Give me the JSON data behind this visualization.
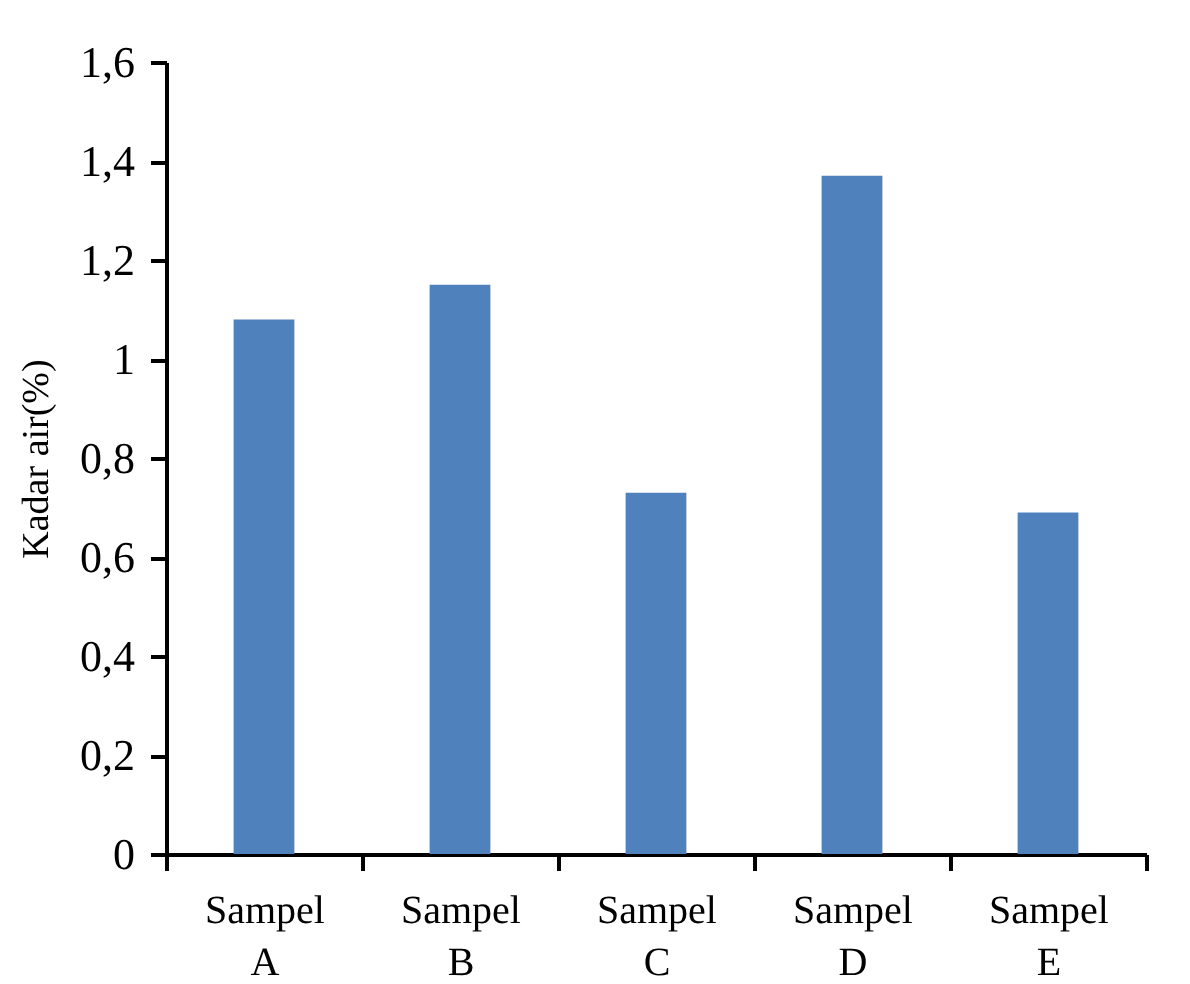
{
  "chart_data": {
    "type": "bar",
    "ylabel": "Kadar air(%)",
    "categories": [
      "Sampel A",
      "Sampel B",
      "Sampel C",
      "Sampel D",
      "Sampel E"
    ],
    "values": [
      1.08,
      1.15,
      0.73,
      1.37,
      0.69
    ],
    "color": "#4f81bd",
    "ylim": [
      0,
      1.6
    ],
    "yticks": [
      {
        "value": 0,
        "label": "0"
      },
      {
        "value": 0.2,
        "label": "0,2"
      },
      {
        "value": 0.4,
        "label": "0,4"
      },
      {
        "value": 0.6,
        "label": "0,6"
      },
      {
        "value": 0.8,
        "label": "0,8"
      },
      {
        "value": 1,
        "label": "1"
      },
      {
        "value": 1.2,
        "label": "1,2"
      },
      {
        "value": 1.4,
        "label": "1,4"
      },
      {
        "value": 1.6,
        "label": "1,6"
      }
    ],
    "grid": false
  }
}
